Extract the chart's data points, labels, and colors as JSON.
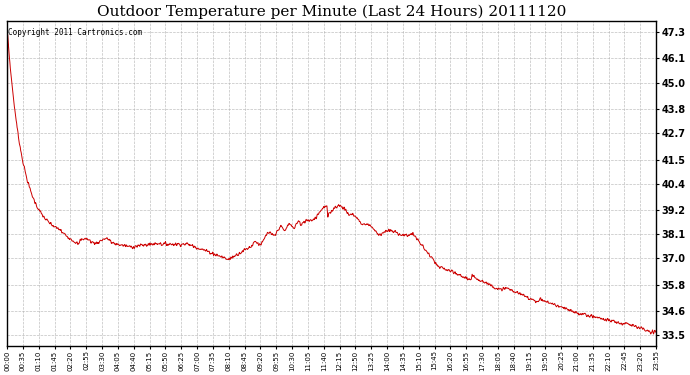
{
  "title": "Outdoor Temperature per Minute (Last 24 Hours) 20111120",
  "copyright_text": "Copyright 2011 Cartronics.com",
  "background_color": "#ffffff",
  "plot_bg_color": "#ffffff",
  "line_color": "#cc0000",
  "grid_color": "#b0b0b0",
  "title_fontsize": 11,
  "yticks": [
    33.5,
    34.6,
    35.8,
    37.0,
    38.1,
    39.2,
    40.4,
    41.5,
    42.7,
    43.8,
    45.0,
    46.1,
    47.3
  ],
  "ylim": [
    33.0,
    47.8
  ],
  "xtick_labels": [
    "00:00",
    "00:35",
    "01:10",
    "01:45",
    "02:20",
    "02:55",
    "03:30",
    "04:05",
    "04:40",
    "05:15",
    "05:50",
    "06:25",
    "07:00",
    "07:35",
    "08:10",
    "08:45",
    "09:20",
    "09:55",
    "10:30",
    "11:05",
    "11:40",
    "12:15",
    "12:50",
    "13:25",
    "14:00",
    "14:35",
    "15:10",
    "15:45",
    "16:20",
    "16:55",
    "17:30",
    "18:05",
    "18:40",
    "19:15",
    "19:50",
    "20:25",
    "21:00",
    "21:35",
    "22:10",
    "22:45",
    "23:20",
    "23:55"
  ],
  "figsize": [
    6.9,
    3.75
  ],
  "dpi": 100
}
